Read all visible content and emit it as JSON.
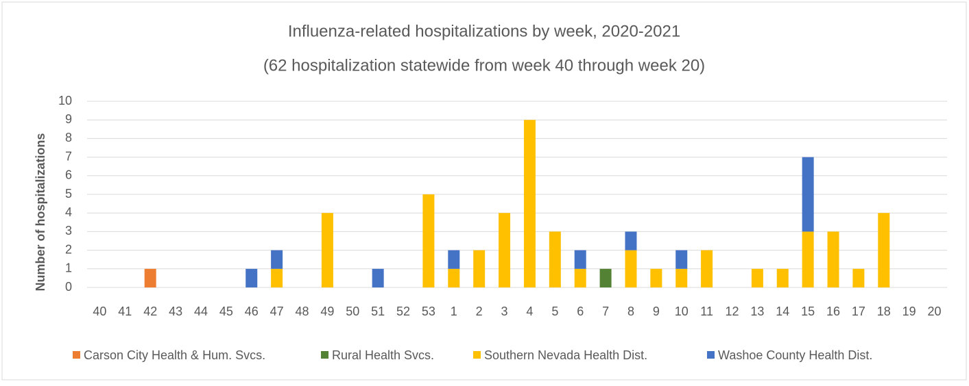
{
  "chart_data": {
    "type": "stacked_bar",
    "title": "Influenza-related hospitalizations by week, 2020-2021",
    "subtitle": "(62 hospitalization statewide from week 40 through week 20)",
    "y_label": "Number of hospitalizations",
    "categories": [
      "40",
      "41",
      "42",
      "43",
      "44",
      "45",
      "46",
      "47",
      "48",
      "49",
      "50",
      "51",
      "52",
      "53",
      "1",
      "2",
      "3",
      "4",
      "5",
      "6",
      "7",
      "8",
      "9",
      "10",
      "11",
      "12",
      "13",
      "14",
      "15",
      "16",
      "17",
      "18",
      "19",
      "20"
    ],
    "series": [
      {
        "name": "Carson City Health & Hum. Svcs.",
        "color": "#ed7d31",
        "values": [
          0,
          0,
          1,
          0,
          0,
          0,
          0,
          0,
          0,
          0,
          0,
          0,
          0,
          0,
          0,
          0,
          0,
          0,
          0,
          0,
          0,
          0,
          0,
          0,
          0,
          0,
          0,
          0,
          0,
          0,
          0,
          0,
          0,
          0
        ]
      },
      {
        "name": "Rural Health Svcs.",
        "color": "#548235",
        "values": [
          0,
          0,
          0,
          0,
          0,
          0,
          0,
          0,
          0,
          0,
          0,
          0,
          0,
          0,
          0,
          0,
          0,
          0,
          0,
          0,
          1,
          0,
          0,
          0,
          0,
          0,
          0,
          0,
          0,
          0,
          0,
          0,
          0,
          0
        ]
      },
      {
        "name": "Southern Nevada Health Dist.",
        "color": "#ffc000",
        "values": [
          0,
          0,
          0,
          0,
          0,
          0,
          0,
          1,
          0,
          4,
          0,
          0,
          0,
          5,
          1,
          2,
          4,
          9,
          3,
          1,
          0,
          2,
          1,
          1,
          2,
          0,
          1,
          1,
          3,
          3,
          1,
          4,
          0,
          0
        ]
      },
      {
        "name": "Washoe County Health Dist.",
        "color": "#4472c4",
        "values": [
          0,
          0,
          0,
          0,
          0,
          0,
          1,
          1,
          0,
          0,
          0,
          1,
          0,
          0,
          1,
          0,
          0,
          0,
          0,
          1,
          0,
          1,
          0,
          1,
          0,
          0,
          0,
          0,
          4,
          0,
          0,
          0,
          0,
          0
        ]
      }
    ],
    "ylim": [
      0,
      10
    ],
    "yticks": [
      0,
      1,
      2,
      3,
      4,
      5,
      6,
      7,
      8,
      9,
      10
    ],
    "grid": true,
    "legend": "bottom"
  }
}
